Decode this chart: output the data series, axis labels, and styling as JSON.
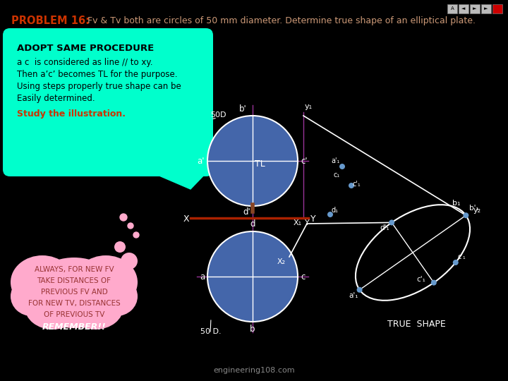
{
  "bg_color": "#000000",
  "title_problem": "PROBLEM 16:",
  "title_rest": " Fv & Tv both are circles of 50 mm diameter. Determine true shape of an elliptical plate.",
  "title_color_bold": "#cc3300",
  "title_color_rest": "#cc9977",
  "bubble1_color": "#00ffcc",
  "bubble1_text_title": "ADOPT SAME PROCEDURE",
  "bubble1_line1": "a c  is considered as line // to xy.",
  "bubble1_line2": "Then a’c’ becomes TL for the purpose.",
  "bubble1_line3": "Using steps properly true shape can be",
  "bubble1_line4": "Easily determined.",
  "bubble1_study": "Study the illustration.",
  "bubble2_color": "#ffaacc",
  "bubble2_text1": "ALWAYS, FOR NEW FV",
  "bubble2_text2": "TAKE DISTANCES OF",
  "bubble2_text3": "PREVIOUS FV AND",
  "bubble2_text4": "FOR NEW TV, DISTANCES",
  "bubble2_text5": "OF PREVIOUS TV",
  "bubble2_remember": "REMEMBER!!",
  "circle_fill": "#4466aa",
  "circle_border": "#ffffff",
  "line_color": "#ffffff",
  "label_color": "#ffffff",
  "xy_line_color": "#aa2200",
  "grid_color": "#993399",
  "ellipse_color": "#ffffff",
  "dot_color": "#6699cc",
  "nav_gray": "#aaaaaa",
  "footer_color": "#888888"
}
